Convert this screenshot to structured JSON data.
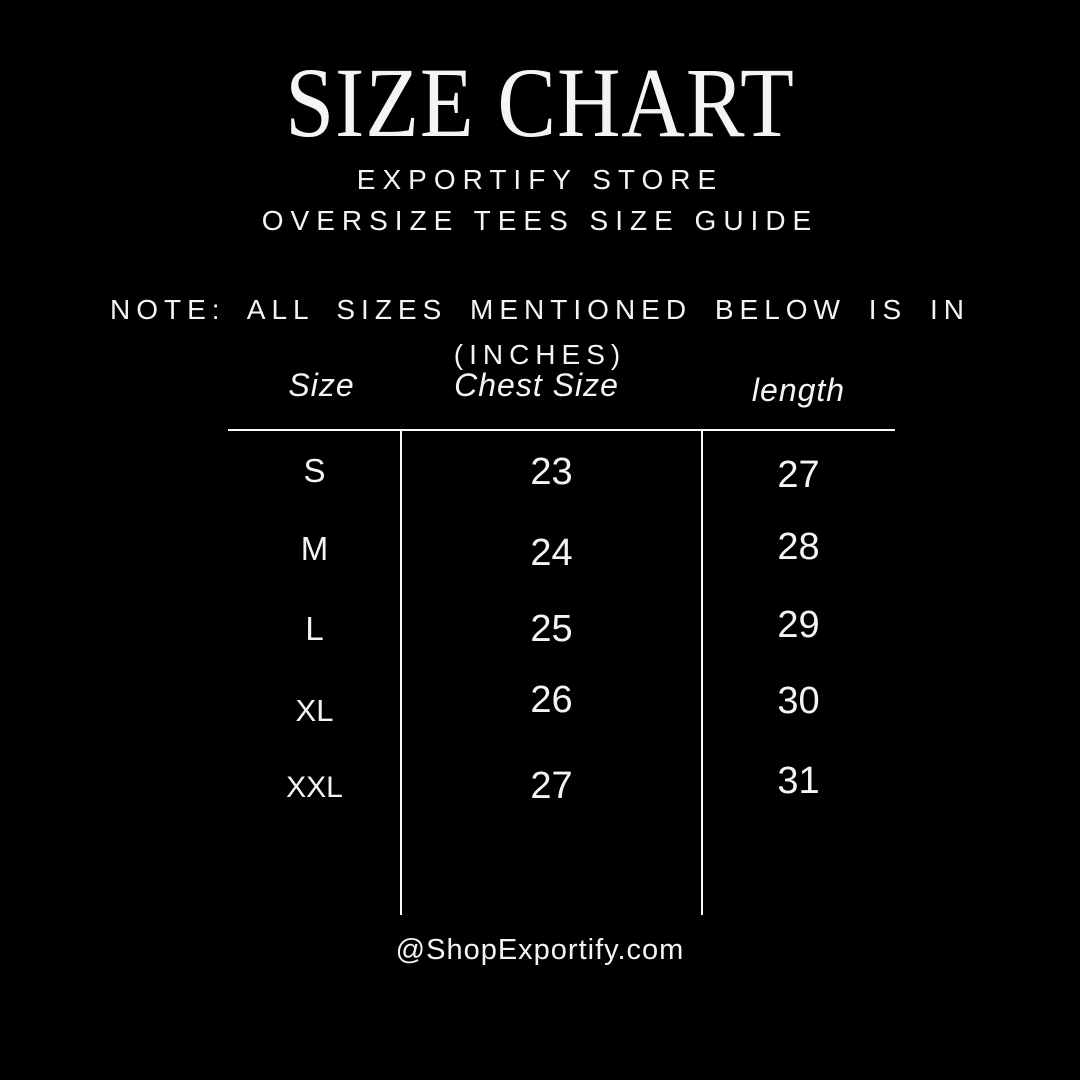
{
  "page": {
    "background": "#000000",
    "text_color": "#f5f4f2",
    "line_color": "#fbfbfb"
  },
  "header": {
    "title": "SIZE CHART",
    "store": "EXPORTIFY STORE",
    "guide": "OVERSIZE TEES SIZE GUIDE"
  },
  "note": {
    "line1": "NOTE: ALL SIZES MENTIONED BELOW IS IN",
    "line2": "(INCHES)"
  },
  "chart_data": {
    "type": "table",
    "title": "SIZE CHART",
    "units": "inches",
    "columns": [
      "Size",
      "Chest Size",
      "length"
    ],
    "rows": [
      [
        "S",
        "23",
        "27"
      ],
      [
        "M",
        "24",
        "28"
      ],
      [
        "L",
        "25",
        "29"
      ],
      [
        "XL",
        "26",
        "30"
      ],
      [
        "XXL",
        "27",
        "31"
      ]
    ]
  },
  "footer": {
    "handle": "@ShopExportify.com"
  }
}
